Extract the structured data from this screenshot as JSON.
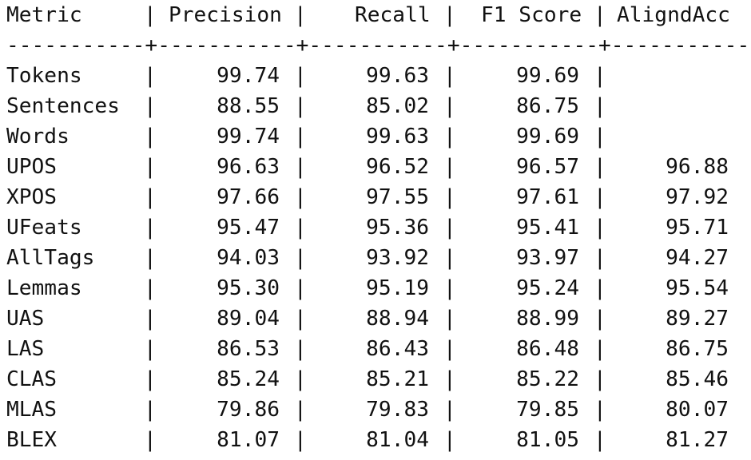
{
  "header": {
    "metric": "Metric",
    "precision": "Precision",
    "recall": "Recall",
    "f1": "F1 Score",
    "aligned_acc": "AligndAcc",
    "bar": "|"
  },
  "separator": "-----------+-----------+-----------+-----------+-----------",
  "rows": [
    {
      "metric": "Tokens",
      "precision": "99.74",
      "recall": "99.63",
      "f1": "99.69",
      "aligned_acc": ""
    },
    {
      "metric": "Sentences",
      "precision": "88.55",
      "recall": "85.02",
      "f1": "86.75",
      "aligned_acc": ""
    },
    {
      "metric": "Words",
      "precision": "99.74",
      "recall": "99.63",
      "f1": "99.69",
      "aligned_acc": ""
    },
    {
      "metric": "UPOS",
      "precision": "96.63",
      "recall": "96.52",
      "f1": "96.57",
      "aligned_acc": "96.88"
    },
    {
      "metric": "XPOS",
      "precision": "97.66",
      "recall": "97.55",
      "f1": "97.61",
      "aligned_acc": "97.92"
    },
    {
      "metric": "UFeats",
      "precision": "95.47",
      "recall": "95.36",
      "f1": "95.41",
      "aligned_acc": "95.71"
    },
    {
      "metric": "AllTags",
      "precision": "94.03",
      "recall": "93.92",
      "f1": "93.97",
      "aligned_acc": "94.27"
    },
    {
      "metric": "Lemmas",
      "precision": "95.30",
      "recall": "95.19",
      "f1": "95.24",
      "aligned_acc": "95.54"
    },
    {
      "metric": "UAS",
      "precision": "89.04",
      "recall": "88.94",
      "f1": "88.99",
      "aligned_acc": "89.27"
    },
    {
      "metric": "LAS",
      "precision": "86.53",
      "recall": "86.43",
      "f1": "86.48",
      "aligned_acc": "86.75"
    },
    {
      "metric": "CLAS",
      "precision": "85.24",
      "recall": "85.21",
      "f1": "85.22",
      "aligned_acc": "85.46"
    },
    {
      "metric": "MLAS",
      "precision": "79.86",
      "recall": "79.83",
      "f1": "79.85",
      "aligned_acc": "80.07"
    },
    {
      "metric": "BLEX",
      "precision": "81.07",
      "recall": "81.04",
      "f1": "81.05",
      "aligned_acc": "81.27"
    }
  ]
}
